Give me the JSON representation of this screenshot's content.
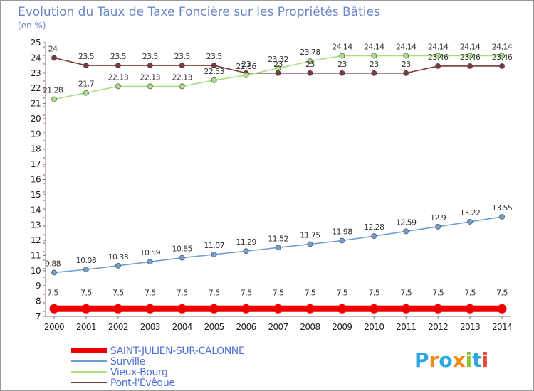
{
  "chart_data": {
    "type": "line",
    "title": "Evolution du Taux de Taxe Foncière sur les Propriétés Bâties",
    "subtitle": "(en %)",
    "xlabel": "",
    "ylabel": "(en %)",
    "ylim": [
      7,
      25
    ],
    "yticks": [
      7,
      8,
      9,
      10,
      11,
      12,
      13,
      14,
      15,
      16,
      17,
      18,
      19,
      20,
      21,
      22,
      23,
      24,
      25
    ],
    "grid": false,
    "legend_position": "bottom-left",
    "categories": [
      "2000",
      "2001",
      "2002",
      "2003",
      "2004",
      "2005",
      "2006",
      "2007",
      "2008",
      "2009",
      "2010",
      "2011",
      "2012",
      "2013",
      "2014"
    ],
    "series": [
      {
        "name": "SAINT-JULIEN-SUR-CALONNE",
        "color": "#ee0000",
        "values": [
          7.5,
          7.5,
          7.5,
          7.5,
          7.5,
          7.5,
          7.5,
          7.5,
          7.5,
          7.5,
          7.5,
          7.5,
          7.5,
          7.5,
          7.5
        ],
        "labels": [
          "7.5",
          "7.5",
          "7.5",
          "7.5",
          "7.5",
          "7.5",
          "7.5",
          "7.5",
          "7.5",
          "7.5",
          "7.5",
          "7.5",
          "7.5",
          "7.5",
          "7.5"
        ]
      },
      {
        "name": "Surville",
        "color": "#6e9fd0",
        "values": [
          9.88,
          10.08,
          10.33,
          10.59,
          10.85,
          11.07,
          11.29,
          11.52,
          11.75,
          11.98,
          12.28,
          12.59,
          12.9,
          13.22,
          13.55
        ],
        "labels": [
          "9.88",
          "10.08",
          "10.33",
          "10.59",
          "10.85",
          "11.07",
          "11.29",
          "11.52",
          "11.75",
          "11.98",
          "12.28",
          "12.59",
          "12.9",
          "13.22",
          "13.55"
        ]
      },
      {
        "name": "Vieux-Bourg",
        "color": "#a8df80",
        "values": [
          21.28,
          21.7,
          22.13,
          22.13,
          22.13,
          22.53,
          22.86,
          23.32,
          23.78,
          24.14,
          24.14,
          24.14,
          24.14,
          24.14,
          24.14
        ],
        "labels": [
          "21.28",
          "21.7",
          "22.13",
          "22.13",
          "22.13",
          "22.53",
          "22.86",
          "23.32",
          "23.78",
          "24.14",
          "24.14",
          "24.14",
          "24.14",
          "24.14",
          "24.14"
        ]
      },
      {
        "name": "Pont-l'Évêque",
        "color": "#7a3a3a",
        "values": [
          24,
          23.5,
          23.5,
          23.5,
          23.5,
          23.5,
          23,
          23,
          23,
          23,
          23,
          23,
          23.46,
          23.46,
          23.46
        ],
        "labels": [
          "24",
          "23.5",
          "23.5",
          "23.5",
          "23.5",
          "23.5",
          "23",
          "23",
          "23",
          "23",
          "23",
          "23",
          "23.46",
          "23.46",
          "23.46"
        ]
      }
    ]
  },
  "brand": {
    "text": "Proxiti"
  }
}
